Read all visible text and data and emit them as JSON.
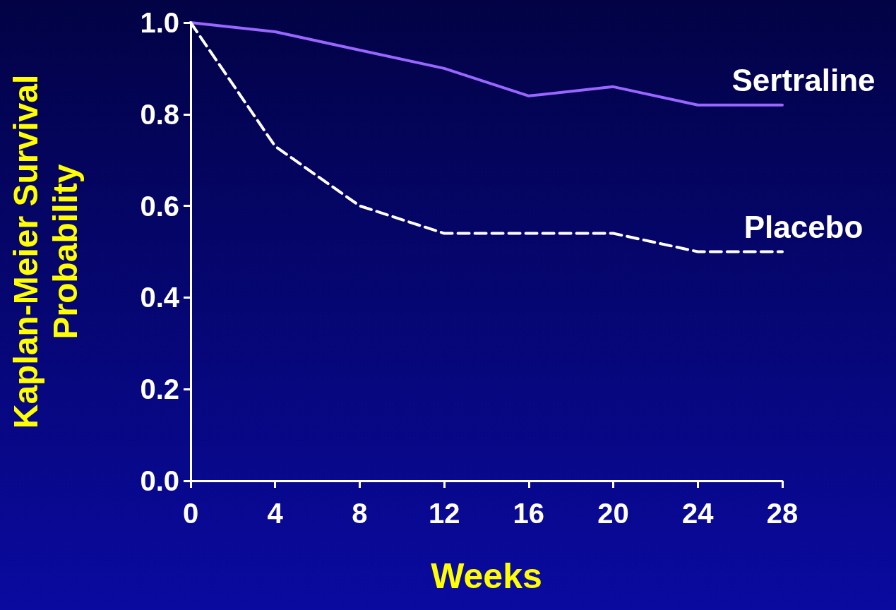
{
  "chart_data": {
    "type": "line",
    "xlabel": "Weeks",
    "ylabel": "Kaplan-Meier Survival Probability",
    "x": [
      0,
      4,
      8,
      12,
      16,
      20,
      24,
      28
    ],
    "series": [
      {
        "name": "Sertraline",
        "color": "#9966ff",
        "line_style": "solid",
        "values": [
          1.0,
          0.98,
          0.94,
          0.9,
          0.84,
          0.86,
          0.82,
          0.82
        ]
      },
      {
        "name": "Placebo",
        "color": "#ffffff",
        "line_style": "dashed",
        "values": [
          1.0,
          0.73,
          0.6,
          0.54,
          0.54,
          0.54,
          0.5,
          0.5
        ]
      }
    ],
    "xlim": [
      0,
      28
    ],
    "xticks": [
      0,
      4,
      8,
      12,
      16,
      20,
      24,
      28
    ],
    "ylim": [
      0,
      1
    ],
    "yticks": [
      {
        "value": 0,
        "label": "0.0"
      },
      {
        "value": 0.2,
        "label": "0.2"
      },
      {
        "value": 0.4,
        "label": "0.4"
      },
      {
        "value": 0.6,
        "label": "0.6"
      },
      {
        "value": 0.8,
        "label": "0.8"
      },
      {
        "value": 1,
        "label": "1.0"
      }
    ],
    "grid": false,
    "legend": false,
    "marker": "none"
  }
}
